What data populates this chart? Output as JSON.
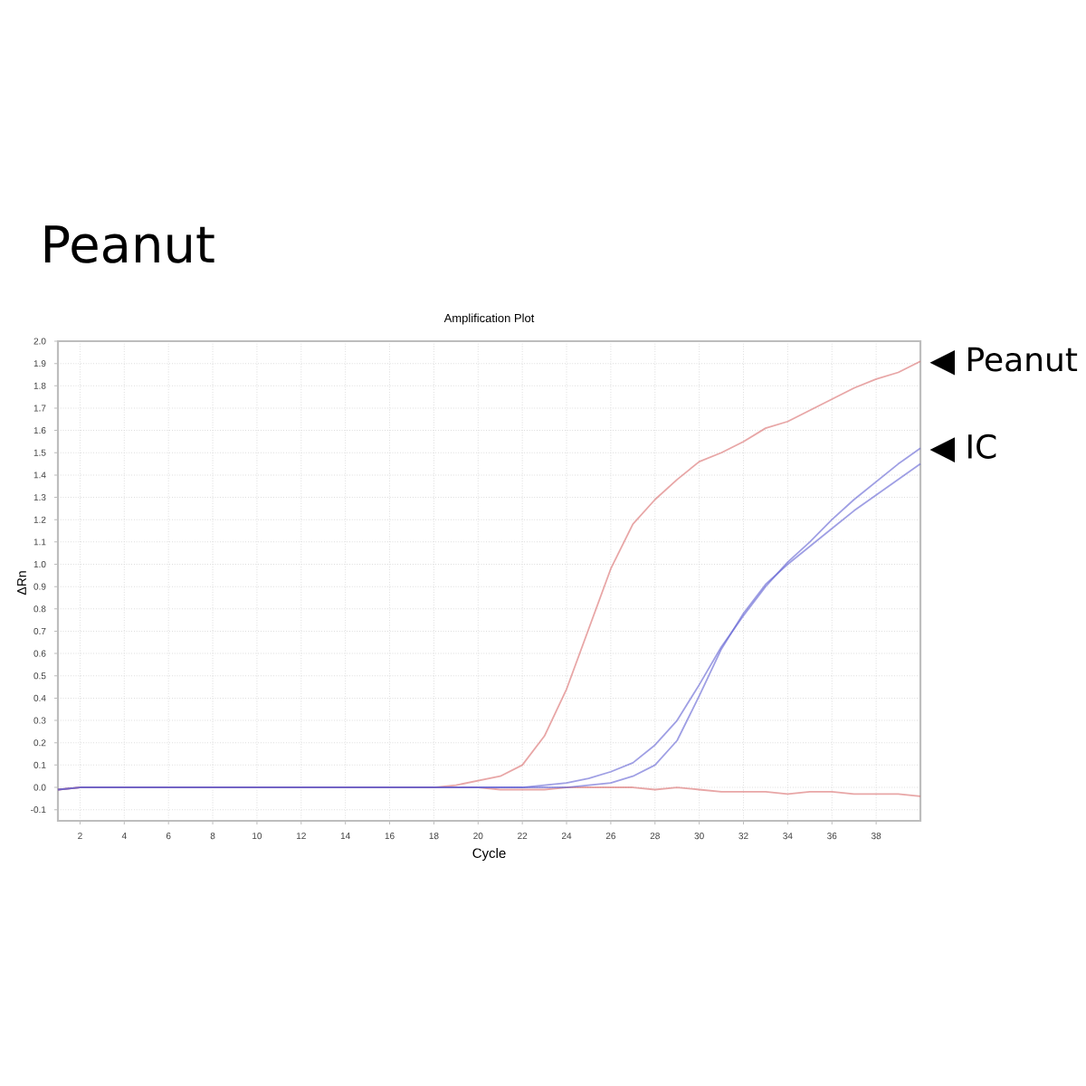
{
  "chart_data": {
    "type": "line",
    "title": "Peanut",
    "subtitle": "Amplification Plot",
    "xlabel": "Cycle",
    "ylabel": "ΔRn",
    "x": [
      1,
      2,
      3,
      4,
      5,
      6,
      7,
      8,
      9,
      10,
      11,
      12,
      13,
      14,
      15,
      16,
      17,
      18,
      19,
      20,
      21,
      22,
      23,
      24,
      25,
      26,
      27,
      28,
      29,
      30,
      31,
      32,
      33,
      34,
      35,
      36,
      37,
      38,
      39,
      40
    ],
    "series": [
      {
        "color": "#d86a6a",
        "values": [
          -0.01,
          0.0,
          0.0,
          0.0,
          0.0,
          0.0,
          0.0,
          0.0,
          0.0,
          0.0,
          0.0,
          0.0,
          0.0,
          0.0,
          0.0,
          0.0,
          0.0,
          0.0,
          0.01,
          0.03,
          0.05,
          0.1,
          0.23,
          0.44,
          0.71,
          0.98,
          1.18,
          1.29,
          1.38,
          1.46,
          1.5,
          1.55,
          1.61,
          1.64,
          1.69,
          1.74,
          1.79,
          1.83,
          1.86,
          1.91
        ]
      },
      {
        "color": "#d86a6a",
        "values": [
          -0.01,
          0.0,
          0.0,
          0.0,
          0.0,
          0.0,
          0.0,
          0.0,
          0.0,
          0.0,
          0.0,
          0.0,
          0.0,
          0.0,
          0.0,
          0.0,
          0.0,
          0.0,
          0.0,
          0.0,
          -0.01,
          -0.01,
          -0.01,
          0.0,
          0.0,
          0.0,
          0.0,
          -0.01,
          0.0,
          -0.01,
          -0.02,
          -0.02,
          -0.02,
          -0.03,
          -0.02,
          -0.02,
          -0.03,
          -0.03,
          -0.03,
          -0.04
        ]
      },
      {
        "color": "#5f5fd2",
        "values": [
          -0.01,
          0.0,
          0.0,
          0.0,
          0.0,
          0.0,
          0.0,
          0.0,
          0.0,
          0.0,
          0.0,
          0.0,
          0.0,
          0.0,
          0.0,
          0.0,
          0.0,
          0.0,
          0.0,
          0.0,
          0.0,
          0.0,
          0.01,
          0.02,
          0.04,
          0.07,
          0.11,
          0.19,
          0.3,
          0.46,
          0.63,
          0.77,
          0.9,
          1.01,
          1.1,
          1.2,
          1.29,
          1.37,
          1.45,
          1.52
        ]
      },
      {
        "color": "#5f5fd2",
        "values": [
          -0.01,
          0.0,
          0.0,
          0.0,
          0.0,
          0.0,
          0.0,
          0.0,
          0.0,
          0.0,
          0.0,
          0.0,
          0.0,
          0.0,
          0.0,
          0.0,
          0.0,
          0.0,
          0.0,
          0.0,
          0.0,
          0.0,
          0.0,
          0.0,
          0.01,
          0.02,
          0.05,
          0.1,
          0.21,
          0.41,
          0.62,
          0.78,
          0.91,
          1.0,
          1.08,
          1.16,
          1.24,
          1.31,
          1.38,
          1.45
        ]
      }
    ],
    "xlim": [
      1,
      40
    ],
    "ylim": [
      -0.15,
      2.0
    ],
    "xticks": [
      2,
      4,
      6,
      8,
      10,
      12,
      14,
      16,
      18,
      20,
      22,
      24,
      26,
      28,
      30,
      32,
      34,
      36,
      38
    ],
    "yticks": [
      {
        "value": 2.0,
        "label": "2.0"
      },
      1.9,
      1.8,
      1.7,
      1.6,
      1.5,
      1.4,
      1.3,
      1.2,
      1.1,
      {
        "value": 1.0,
        "label": "1.0"
      },
      0.9,
      0.8,
      0.7,
      0.6,
      0.5,
      0.4,
      0.3,
      0.2,
      0.1,
      {
        "value": 0.0,
        "label": "0.0"
      },
      -0.1
    ],
    "grid": true,
    "annotations": [
      {
        "text": "◀ Peanut",
        "x": 40,
        "y": 1.91
      },
      {
        "text": "◀ IC",
        "x": 40,
        "y": 1.52
      }
    ]
  }
}
